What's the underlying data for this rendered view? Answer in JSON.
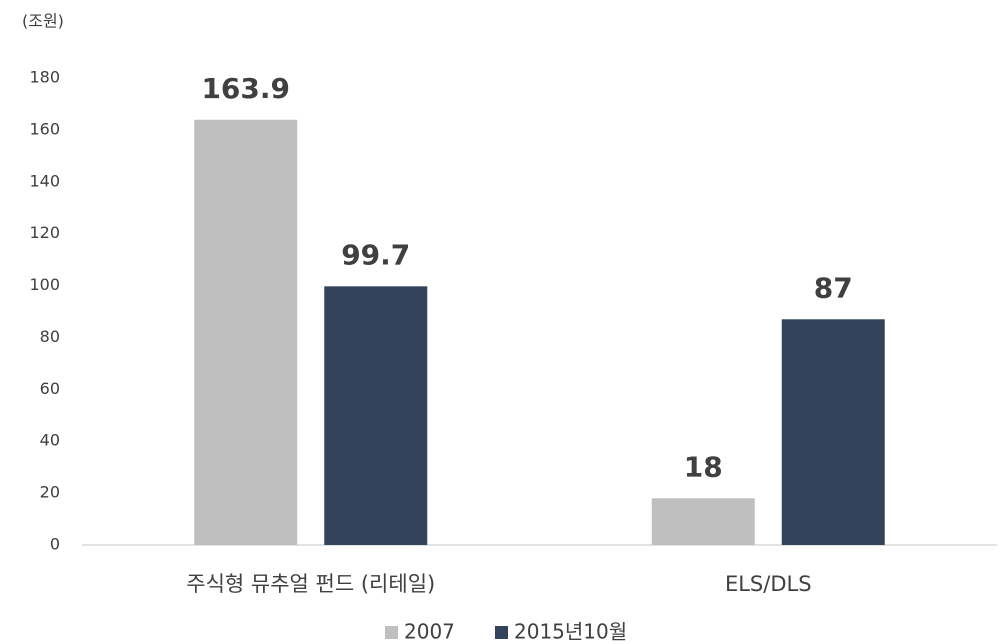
{
  "chart_data": {
    "type": "bar",
    "y_label": "(조원)",
    "categories": [
      "주식형 뮤추얼 펀드 (리테일)",
      "ELS/DLS"
    ],
    "series": [
      {
        "name": "2007",
        "color": "#bfbfbf",
        "values": [
          163.9,
          18
        ]
      },
      {
        "name": "2015년10월",
        "color": "#34435c",
        "values": [
          99.7,
          87
        ]
      }
    ],
    "ylim": [
      0,
      180
    ],
    "yticks": [
      0,
      20,
      40,
      60,
      80,
      100,
      120,
      140,
      160,
      180
    ],
    "grid": false,
    "legend": "bottom"
  }
}
